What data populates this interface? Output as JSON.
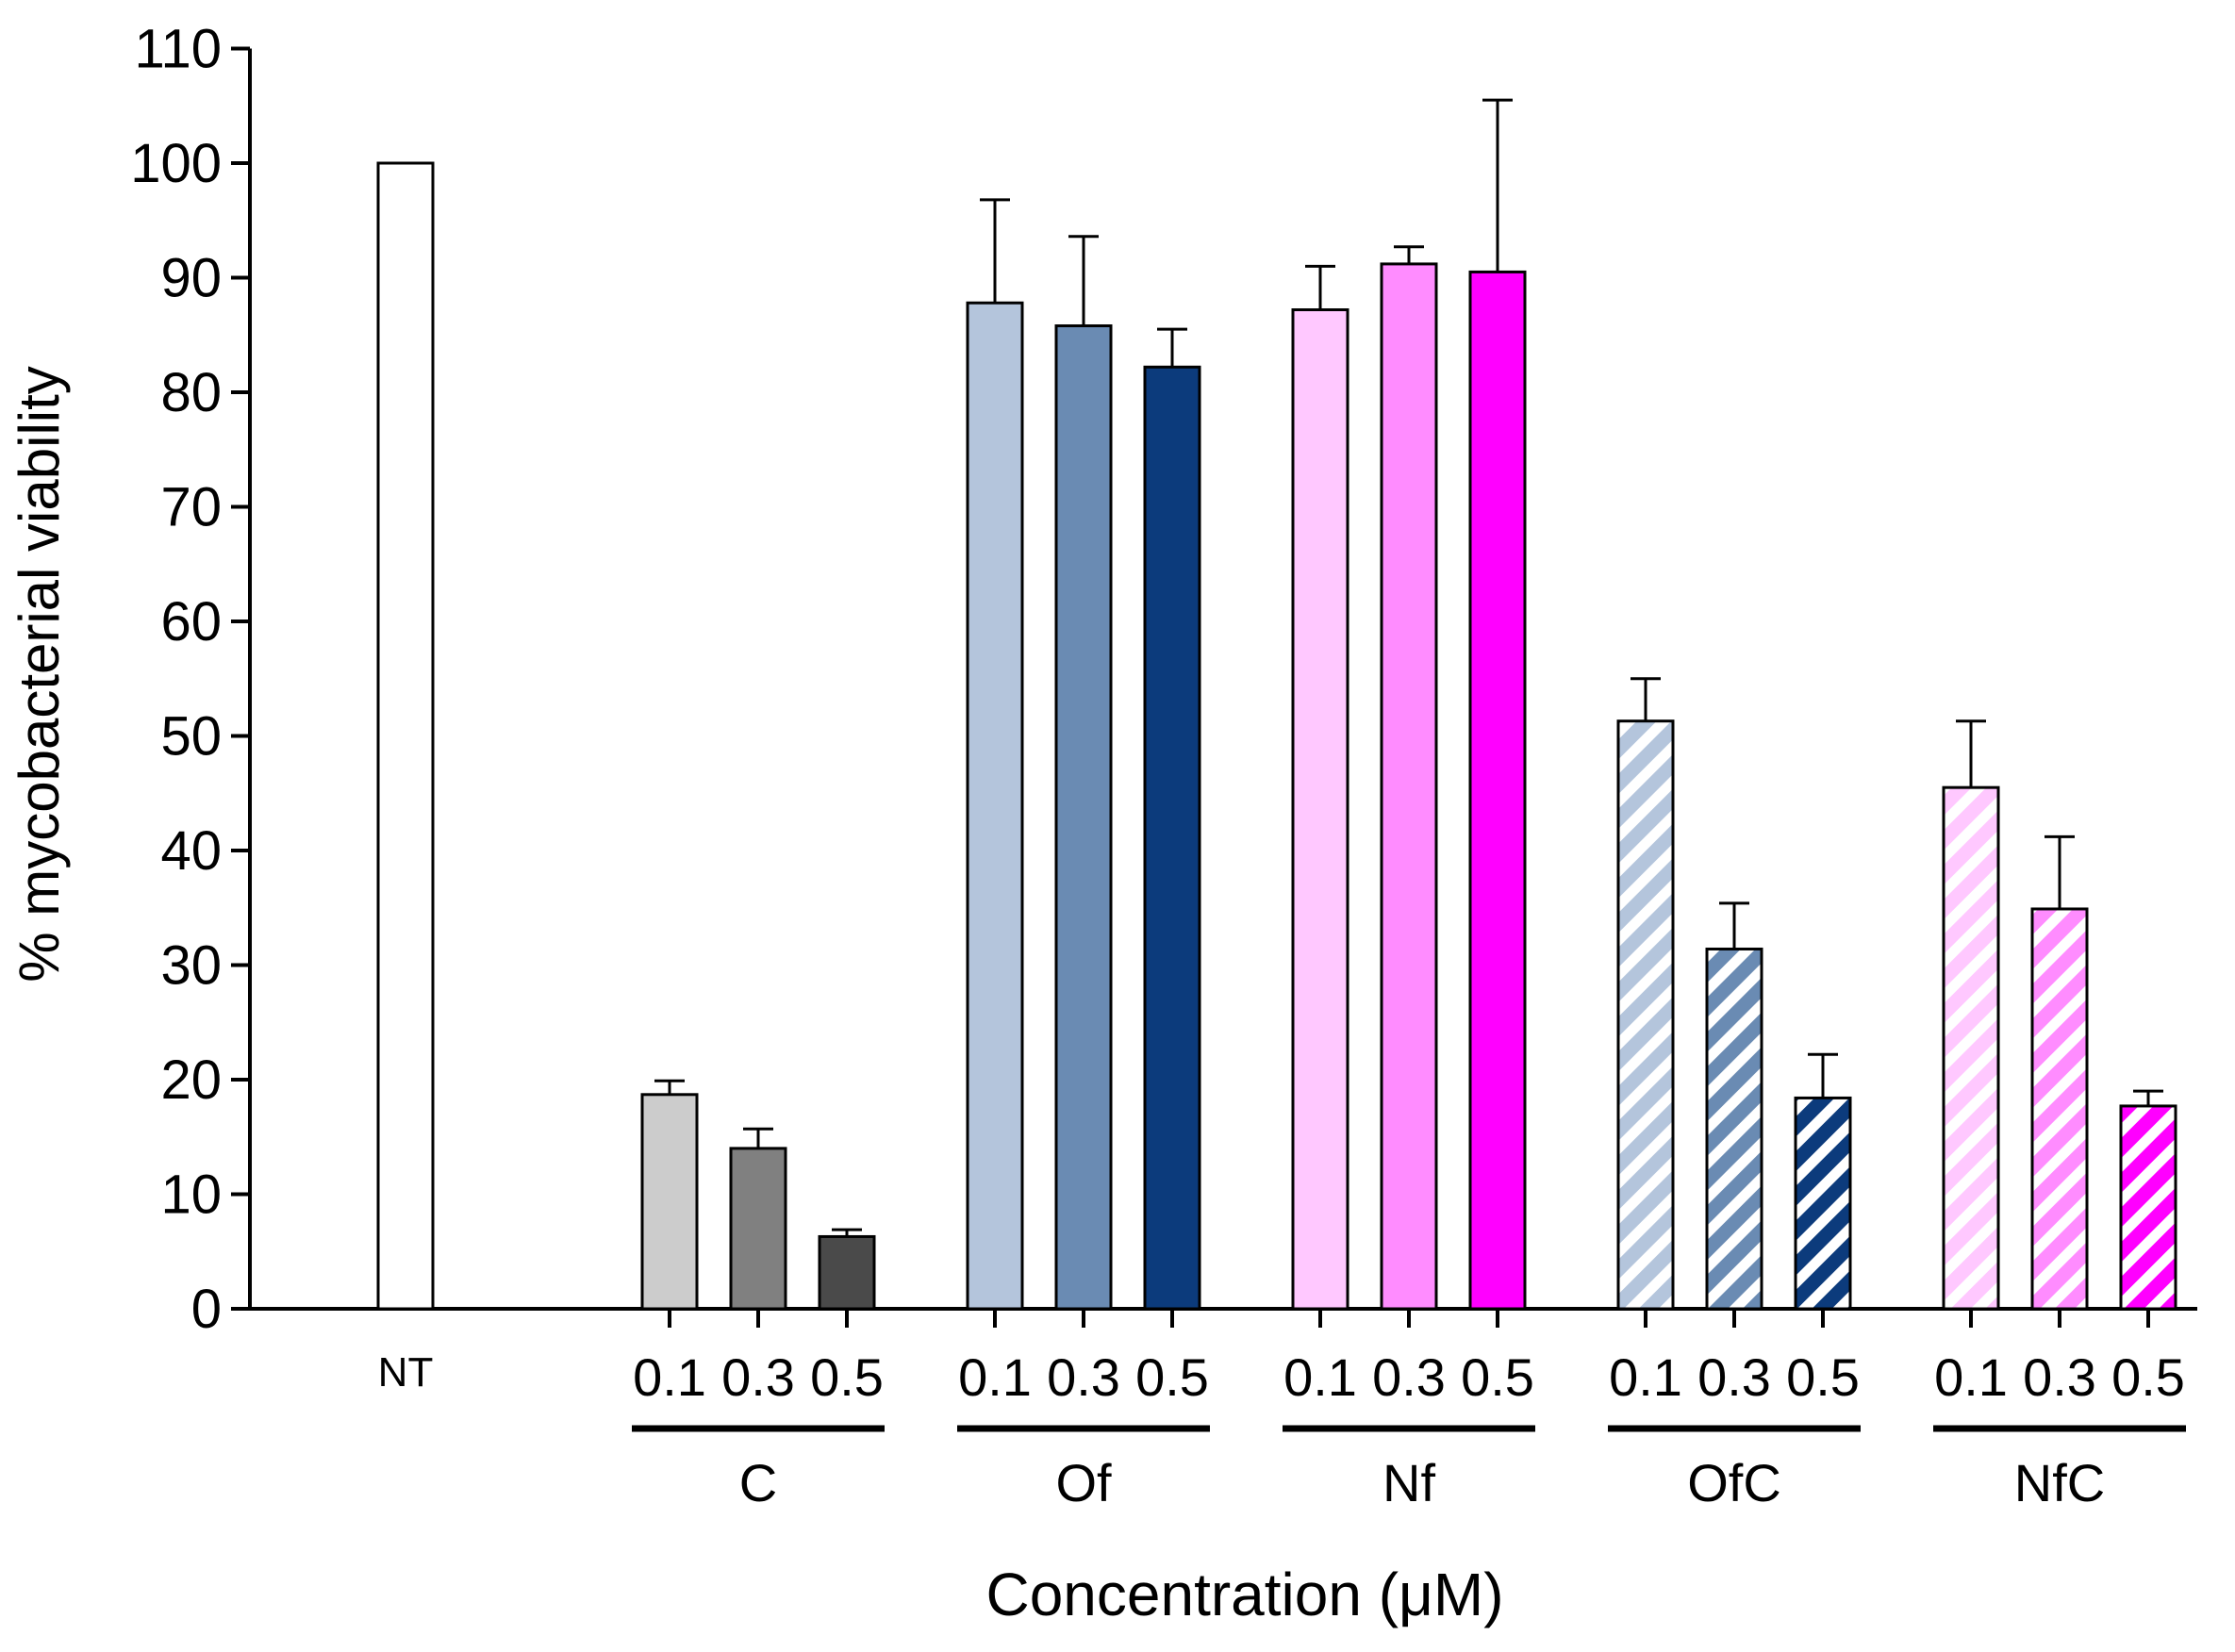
{
  "chart_data": {
    "type": "bar",
    "title": "",
    "ylabel": "% mycobacterial viability",
    "xlabel": "Concentration (μM)",
    "ylim": [
      0,
      110
    ],
    "yticks": [
      0,
      10,
      20,
      30,
      40,
      50,
      60,
      70,
      80,
      90,
      100,
      110
    ],
    "groups": [
      {
        "name": "",
        "bars": [
          {
            "label": "NT",
            "value": 100,
            "error": 0,
            "fill": "#ffffff",
            "pattern": "solid"
          }
        ]
      },
      {
        "name": "C",
        "bars": [
          {
            "label": "0.1",
            "value": 18.7,
            "error": 1.2,
            "fill": "#cccccc",
            "pattern": "solid"
          },
          {
            "label": "0.3",
            "value": 14.0,
            "error": 1.7,
            "fill": "#808080",
            "pattern": "solid"
          },
          {
            "label": "0.5",
            "value": 6.3,
            "error": 0.6,
            "fill": "#4a4a4a",
            "pattern": "solid"
          }
        ]
      },
      {
        "name": "Of",
        "bars": [
          {
            "label": "0.1",
            "value": 87.8,
            "error": 9.0,
            "fill": "#b4c5dc",
            "pattern": "solid"
          },
          {
            "label": "0.3",
            "value": 85.8,
            "error": 7.8,
            "fill": "#6a8bb3",
            "pattern": "solid"
          },
          {
            "label": "0.5",
            "value": 82.2,
            "error": 3.3,
            "fill": "#0c3b7c",
            "pattern": "solid"
          }
        ]
      },
      {
        "name": "Nf",
        "bars": [
          {
            "label": "0.1",
            "value": 87.2,
            "error": 3.8,
            "fill": "#ffc8ff",
            "pattern": "solid"
          },
          {
            "label": "0.3",
            "value": 91.2,
            "error": 1.5,
            "fill": "#ff8cff",
            "pattern": "solid"
          },
          {
            "label": "0.5",
            "value": 90.5,
            "error": 15.0,
            "fill": "#ff00ff",
            "pattern": "solid"
          }
        ]
      },
      {
        "name": "OfC",
        "bars": [
          {
            "label": "0.1",
            "value": 51.3,
            "error": 3.7,
            "fill": "#b4c5dc",
            "pattern": "hatch"
          },
          {
            "label": "0.3",
            "value": 31.4,
            "error": 4.0,
            "fill": "#6a8bb3",
            "pattern": "hatch"
          },
          {
            "label": "0.5",
            "value": 18.4,
            "error": 3.8,
            "fill": "#0c3b7c",
            "pattern": "hatch"
          }
        ]
      },
      {
        "name": "NfC",
        "bars": [
          {
            "label": "0.1",
            "value": 45.5,
            "error": 5.8,
            "fill": "#ffc8ff",
            "pattern": "hatch"
          },
          {
            "label": "0.3",
            "value": 34.9,
            "error": 6.3,
            "fill": "#ff8cff",
            "pattern": "hatch"
          },
          {
            "label": "0.5",
            "value": 17.7,
            "error": 1.3,
            "fill": "#ff00ff",
            "pattern": "hatch"
          }
        ]
      }
    ],
    "legend": "none",
    "grid": false
  }
}
